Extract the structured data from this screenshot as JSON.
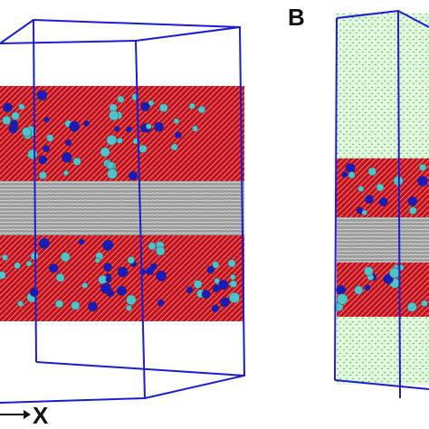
{
  "panel_label": "B",
  "axis_label": "X"
}
